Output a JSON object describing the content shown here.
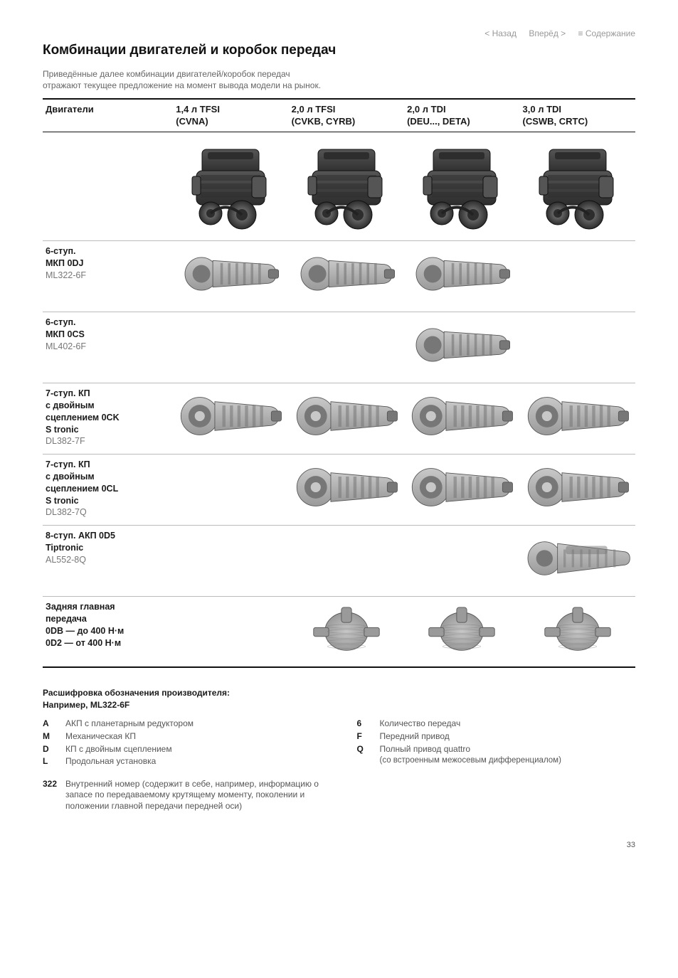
{
  "nav": {
    "back": "< Назад",
    "forward": "Вперёд >",
    "contents": "≡ Содержание"
  },
  "title": "Комбинации двигателей и коробок передач",
  "subtitle": "Приведённые далее комбинации двигателей/коробок передач отражают текущее предложение на момент вывода модели на рынок.",
  "columns": {
    "label_head": "Двигатели",
    "c1": {
      "name": "1,4 л TFSI",
      "code": "(CVNA)"
    },
    "c2": {
      "name": "2,0 л TFSI",
      "code": "(CVKB, CYRB)"
    },
    "c3": {
      "name": "2,0 л TDI",
      "code": "(DEU..., DETA)"
    },
    "c4": {
      "name": "3,0 л TDI",
      "code": "(CSWB, CRTC)"
    }
  },
  "rows": {
    "r1": {
      "l1": "6-ступ.",
      "l2": "МКП 0DJ",
      "l3": "ML322-6F",
      "cells": [
        true,
        true,
        true,
        false
      ]
    },
    "r2": {
      "l1": "6-ступ.",
      "l2": "МКП 0CS",
      "l3": "ML402-6F",
      "cells": [
        false,
        false,
        true,
        false
      ]
    },
    "r3": {
      "l1": "7-ступ. КП",
      "l2": "с двойным",
      "l3": "сцеплением 0CK",
      "l4": "S tronic",
      "l5": "DL382-7F",
      "cells": [
        true,
        true,
        true,
        true
      ]
    },
    "r4": {
      "l1": "7-ступ. КП",
      "l2": "с двойным",
      "l3": "сцеплением 0CL",
      "l4": "S tronic",
      "l5": "DL382-7Q",
      "cells": [
        false,
        true,
        true,
        true
      ]
    },
    "r5": {
      "l1": "8-ступ. АКП 0D5",
      "l2": "Tiptronic",
      "l3": "AL552-8Q",
      "cells": [
        false,
        false,
        false,
        true
      ]
    },
    "r6": {
      "l1": "Задняя главная",
      "l2": "передача",
      "l3": "0DB — до 400 Н·м",
      "l4": "0D2 — от 400 Н·м",
      "cells": [
        false,
        true,
        true,
        true
      ]
    }
  },
  "row_types": [
    "gearbox",
    "gearbox",
    "dct",
    "dct",
    "auto",
    "diff"
  ],
  "legend": {
    "heading": "Расшифровка обозначения производителя:",
    "example": "Например, ML322-6F",
    "left": [
      {
        "k": "A",
        "v": "АКП с планетарным редуктором"
      },
      {
        "k": "M",
        "v": "Механическая КП"
      },
      {
        "k": "D",
        "v": "КП с двойным сцеплением"
      },
      {
        "k": "L",
        "v": "Продольная установка"
      }
    ],
    "right": [
      {
        "k": "6",
        "v": "Количество передач"
      },
      {
        "k": "F",
        "v": "Передний привод"
      },
      {
        "k": "Q",
        "v": "Полный привод quattro",
        "sub": "(со встроенным межосевым дифференциалом)"
      }
    ],
    "n322": {
      "k": "322",
      "v": "Внутренний номер (содержит в себе, например, информацию о запасе по передаваемому крутящему моменту, поколении и положении главной передачи передней оси)"
    }
  },
  "page": "33",
  "style": {
    "engine_colors": {
      "body": "#2d2d2d",
      "mid": "#555",
      "light": "#888",
      "accent": "#b5b5b5"
    },
    "gearbox_colors": {
      "body": "#9a9a9a",
      "rib": "#777",
      "light": "#c8c8c8"
    }
  }
}
